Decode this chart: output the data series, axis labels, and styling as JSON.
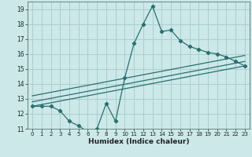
{
  "title": "",
  "xlabel": "Humidex (Indice chaleur)",
  "bg_color": "#cce8e8",
  "grid_color": "#aacfcf",
  "line_color": "#2a6f6f",
  "xlim": [
    -0.5,
    23.5
  ],
  "ylim": [
    11,
    19.5
  ],
  "xticks": [
    0,
    1,
    2,
    3,
    4,
    5,
    6,
    7,
    8,
    9,
    10,
    11,
    12,
    13,
    14,
    15,
    16,
    17,
    18,
    19,
    20,
    21,
    22,
    23
  ],
  "yticks": [
    11,
    12,
    13,
    14,
    15,
    16,
    17,
    18,
    19
  ],
  "main_line": [
    [
      0,
      12.5
    ],
    [
      1,
      12.5
    ],
    [
      2,
      12.5
    ],
    [
      3,
      12.2
    ],
    [
      4,
      11.5
    ],
    [
      5,
      11.2
    ],
    [
      6,
      10.8
    ],
    [
      7,
      11.0
    ],
    [
      8,
      12.7
    ],
    [
      9,
      11.5
    ],
    [
      10,
      14.4
    ],
    [
      11,
      16.7
    ],
    [
      12,
      18.0
    ],
    [
      13,
      19.2
    ],
    [
      14,
      17.5
    ],
    [
      15,
      17.6
    ],
    [
      16,
      16.9
    ],
    [
      17,
      16.5
    ],
    [
      18,
      16.3
    ],
    [
      19,
      16.1
    ],
    [
      20,
      16.0
    ],
    [
      21,
      15.8
    ],
    [
      22,
      15.5
    ],
    [
      23,
      15.2
    ]
  ],
  "trend_lines": [
    [
      [
        0,
        12.5
      ],
      [
        23,
        15.2
      ]
    ],
    [
      [
        0,
        12.8
      ],
      [
        23,
        15.5
      ]
    ],
    [
      [
        0,
        13.2
      ],
      [
        23,
        15.9
      ]
    ]
  ]
}
